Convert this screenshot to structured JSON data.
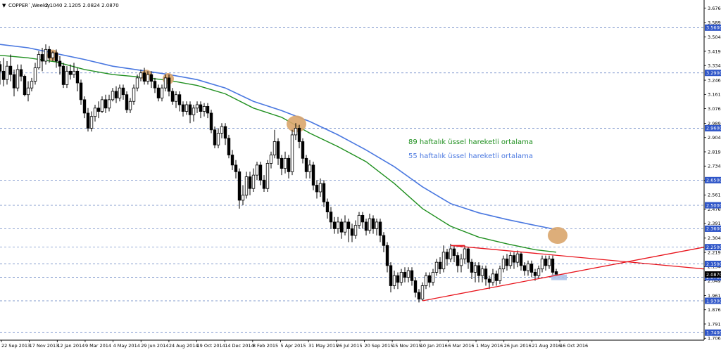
{
  "header": {
    "arrow": "▼",
    "symbol": "COPPER`,Weekly",
    "ohlc": "2.1040 2.1205 2.0824 2.0870"
  },
  "chart_data": {
    "type": "candlestick",
    "y_ticks": [
      "3.6765",
      "3.5890",
      "3.5040",
      "3.4190",
      "3.3340",
      "3.2465",
      "3.1615",
      "3.0765",
      "2.9890",
      "2.9040",
      "2.8190",
      "2.7340",
      "2.6490",
      "2.5615",
      "2.4765",
      "2.3915",
      "2.3040",
      "2.2190",
      "2.1340",
      "2.0490",
      "1.9615",
      "1.8765",
      "1.7915",
      "1.7065"
    ],
    "ylim": [
      1.695,
      3.725
    ],
    "x_ticks": [
      "22 Sep 2013",
      "17 Nov 2013",
      "12 Jan 2014",
      "9 Mar 2014",
      "4 May 2014",
      "29 Jun 2014",
      "24 Aug 2014",
      "19 Oct 2014",
      "14 Dec 2014",
      "8 Feb 2015",
      "5 Apr 2015",
      "31 May 2015",
      "26 Jul 2015",
      "20 Sep 2015",
      "15 Nov 2015",
      "10 Jan 2016",
      "6 Mar 2016",
      "1 May 2016",
      "26 Jun 2016",
      "21 Aug 2016",
      "16 Oct 2016"
    ],
    "levels": [
      {
        "value": 3.56,
        "label": "3.5600"
      },
      {
        "value": 3.29,
        "label": "3.2900"
      },
      {
        "value": 2.96,
        "label": "2.9600"
      },
      {
        "value": 2.65,
        "label": "2.6500"
      },
      {
        "value": 2.5,
        "label": "2.5000"
      },
      {
        "value": 2.36,
        "label": "2.3600"
      },
      {
        "value": 2.25,
        "label": "2.2500"
      },
      {
        "value": 2.15,
        "label": "2.1500"
      },
      {
        "value": 2.07,
        "label": "2.0700"
      },
      {
        "value": 1.93,
        "label": "1.9300"
      },
      {
        "value": 1.74,
        "label": "1.7400"
      }
    ],
    "current_price": {
      "value": 2.087,
      "label": "2.0870"
    },
    "series": [
      {
        "name": "89 haftalık üssel hareketli ortalama",
        "color": "#1f8f1f"
      },
      {
        "name": "55 haftalık üssel hareketli ortalama",
        "color": "#4a78e0"
      }
    ],
    "ma89": [
      [
        0,
        3.395
      ],
      [
        40,
        3.38
      ],
      [
        80,
        3.355
      ],
      [
        120,
        3.31
      ],
      [
        160,
        3.28
      ],
      [
        200,
        3.265
      ],
      [
        240,
        3.245
      ],
      [
        280,
        3.215
      ],
      [
        320,
        3.165
      ],
      [
        360,
        3.08
      ],
      [
        400,
        3.025
      ],
      [
        440,
        2.93
      ],
      [
        480,
        2.85
      ],
      [
        520,
        2.76
      ],
      [
        560,
        2.63
      ],
      [
        600,
        2.48
      ],
      [
        640,
        2.375
      ],
      [
        680,
        2.31
      ],
      [
        720,
        2.27
      ],
      [
        760,
        2.235
      ],
      [
        790,
        2.22
      ]
    ],
    "ma55": [
      [
        0,
        3.46
      ],
      [
        40,
        3.44
      ],
      [
        80,
        3.405
      ],
      [
        120,
        3.37
      ],
      [
        160,
        3.33
      ],
      [
        200,
        3.305
      ],
      [
        240,
        3.28
      ],
      [
        280,
        3.25
      ],
      [
        320,
        3.2
      ],
      [
        360,
        3.12
      ],
      [
        400,
        3.065
      ],
      [
        440,
        3.0
      ],
      [
        480,
        2.92
      ],
      [
        520,
        2.83
      ],
      [
        560,
        2.73
      ],
      [
        600,
        2.61
      ],
      [
        640,
        2.51
      ],
      [
        680,
        2.455
      ],
      [
        720,
        2.415
      ],
      [
        760,
        2.38
      ],
      [
        790,
        2.355
      ]
    ],
    "candles": [
      [
        0,
        3.34,
        3.3,
        3.36,
        3.22
      ],
      [
        5,
        3.3,
        3.25,
        3.38,
        3.21
      ],
      [
        10,
        3.25,
        3.33,
        3.36,
        3.22
      ],
      [
        15,
        3.33,
        3.28,
        3.4,
        3.24
      ],
      [
        20,
        3.28,
        3.2,
        3.31,
        3.15
      ],
      [
        25,
        3.2,
        3.31,
        3.34,
        3.18
      ],
      [
        30,
        3.31,
        3.27,
        3.34,
        3.24
      ],
      [
        35,
        3.27,
        3.16,
        3.28,
        3.15
      ],
      [
        40,
        3.16,
        3.2,
        3.24,
        3.12
      ],
      [
        45,
        3.2,
        3.24,
        3.26,
        3.18
      ],
      [
        50,
        3.24,
        3.32,
        3.35,
        3.22
      ],
      [
        55,
        3.32,
        3.4,
        3.42,
        3.31
      ],
      [
        60,
        3.4,
        3.36,
        3.44,
        3.3
      ],
      [
        65,
        3.36,
        3.43,
        3.46,
        3.34
      ],
      [
        70,
        3.43,
        3.38,
        3.45,
        3.35
      ],
      [
        75,
        3.38,
        3.41,
        3.42,
        3.36
      ],
      [
        80,
        3.41,
        3.36,
        3.43,
        3.32
      ],
      [
        85,
        3.36,
        3.33,
        3.39,
        3.28
      ],
      [
        90,
        3.33,
        3.22,
        3.35,
        3.2
      ],
      [
        95,
        3.22,
        3.3,
        3.33,
        3.2
      ],
      [
        100,
        3.3,
        3.28,
        3.34,
        3.25
      ],
      [
        105,
        3.28,
        3.3,
        3.35,
        3.26
      ],
      [
        110,
        3.3,
        3.23,
        3.32,
        3.18
      ],
      [
        115,
        3.23,
        3.13,
        3.25,
        3.1
      ],
      [
        120,
        3.13,
        3.05,
        3.15,
        3.02
      ],
      [
        125,
        3.05,
        2.96,
        3.08,
        2.94
      ],
      [
        130,
        2.96,
        3.03,
        3.06,
        2.94
      ],
      [
        135,
        3.03,
        3.08,
        3.1,
        3.0
      ],
      [
        140,
        3.08,
        3.06,
        3.12,
        3.02
      ],
      [
        145,
        3.06,
        3.13,
        3.15,
        3.05
      ],
      [
        150,
        3.13,
        3.08,
        3.16,
        3.05
      ],
      [
        155,
        3.08,
        3.13,
        3.16,
        3.06
      ],
      [
        160,
        3.13,
        3.18,
        3.2,
        3.12
      ],
      [
        165,
        3.18,
        3.14,
        3.21,
        3.11
      ],
      [
        170,
        3.14,
        3.2,
        3.22,
        3.12
      ],
      [
        175,
        3.2,
        3.16,
        3.22,
        3.13
      ],
      [
        180,
        3.16,
        3.07,
        3.18,
        3.05
      ],
      [
        185,
        3.07,
        3.12,
        3.14,
        3.05
      ],
      [
        190,
        3.12,
        3.2,
        3.22,
        3.1
      ],
      [
        195,
        3.2,
        3.26,
        3.28,
        3.18
      ],
      [
        200,
        3.26,
        3.29,
        3.31,
        3.24
      ],
      [
        205,
        3.29,
        3.24,
        3.32,
        3.22
      ],
      [
        210,
        3.24,
        3.28,
        3.3,
        3.22
      ],
      [
        215,
        3.28,
        3.24,
        3.3,
        3.2
      ],
      [
        220,
        3.24,
        3.2,
        3.26,
        3.17
      ],
      [
        225,
        3.2,
        3.14,
        3.22,
        3.12
      ],
      [
        230,
        3.14,
        3.2,
        3.22,
        3.12
      ],
      [
        235,
        3.2,
        3.26,
        3.28,
        3.18
      ],
      [
        240,
        3.26,
        3.18,
        3.28,
        3.15
      ],
      [
        245,
        3.18,
        3.12,
        3.2,
        3.1
      ],
      [
        250,
        3.12,
        3.16,
        3.18,
        3.08
      ],
      [
        255,
        3.16,
        3.1,
        3.18,
        3.06
      ],
      [
        260,
        3.1,
        3.06,
        3.12,
        3.03
      ],
      [
        265,
        3.06,
        3.1,
        3.12,
        3.04
      ],
      [
        270,
        3.1,
        3.04,
        3.12,
        2.99
      ],
      [
        275,
        3.04,
        3.08,
        3.1,
        3.0
      ],
      [
        280,
        3.08,
        3.1,
        3.12,
        3.05
      ],
      [
        285,
        3.1,
        3.06,
        3.12,
        3.02
      ],
      [
        290,
        3.06,
        3.09,
        3.11,
        3.03
      ],
      [
        295,
        3.09,
        3.05,
        3.11,
        3.02
      ],
      [
        300,
        3.05,
        2.95,
        3.07,
        2.93
      ],
      [
        305,
        2.95,
        2.86,
        2.97,
        2.84
      ],
      [
        310,
        2.86,
        2.93,
        2.96,
        2.84
      ],
      [
        315,
        2.93,
        2.97,
        2.99,
        2.9
      ],
      [
        320,
        2.97,
        2.9,
        2.99,
        2.86
      ],
      [
        325,
        2.9,
        2.8,
        2.92,
        2.78
      ],
      [
        330,
        2.8,
        2.74,
        2.83,
        2.71
      ],
      [
        335,
        2.74,
        2.7,
        2.77,
        2.66
      ],
      [
        340,
        2.7,
        2.53,
        2.72,
        2.48
      ],
      [
        345,
        2.53,
        2.56,
        2.62,
        2.5
      ],
      [
        350,
        2.56,
        2.67,
        2.7,
        2.54
      ],
      [
        355,
        2.67,
        2.6,
        2.7,
        2.56
      ],
      [
        360,
        2.6,
        2.68,
        2.72,
        2.58
      ],
      [
        365,
        2.68,
        2.74,
        2.76,
        2.65
      ],
      [
        370,
        2.74,
        2.65,
        2.76,
        2.62
      ],
      [
        375,
        2.65,
        2.6,
        2.68,
        2.58
      ],
      [
        380,
        2.6,
        2.75,
        2.77,
        2.58
      ],
      [
        385,
        2.75,
        2.8,
        2.82,
        2.72
      ],
      [
        390,
        2.8,
        2.88,
        2.95,
        2.78
      ],
      [
        395,
        2.88,
        2.78,
        2.9,
        2.74
      ],
      [
        400,
        2.78,
        2.72,
        2.8,
        2.68
      ],
      [
        405,
        2.72,
        2.78,
        2.82,
        2.69
      ],
      [
        410,
        2.78,
        2.7,
        2.8,
        2.66
      ],
      [
        415,
        2.7,
        2.92,
        2.95,
        2.68
      ],
      [
        420,
        2.92,
        2.96,
        2.99,
        2.89
      ],
      [
        425,
        2.96,
        2.88,
        2.98,
        2.84
      ],
      [
        430,
        2.88,
        2.78,
        2.9,
        2.75
      ],
      [
        435,
        2.78,
        2.7,
        2.8,
        2.66
      ],
      [
        440,
        2.7,
        2.74,
        2.77,
        2.66
      ],
      [
        445,
        2.74,
        2.62,
        2.76,
        2.59
      ],
      [
        450,
        2.62,
        2.58,
        2.65,
        2.54
      ],
      [
        455,
        2.58,
        2.63,
        2.66,
        2.55
      ],
      [
        460,
        2.63,
        2.52,
        2.65,
        2.49
      ],
      [
        465,
        2.52,
        2.46,
        2.54,
        2.42
      ],
      [
        470,
        2.46,
        2.4,
        2.49,
        2.36
      ],
      [
        475,
        2.4,
        2.36,
        2.43,
        2.33
      ],
      [
        480,
        2.36,
        2.4,
        2.43,
        2.33
      ],
      [
        485,
        2.4,
        2.34,
        2.42,
        2.3
      ],
      [
        490,
        2.34,
        2.4,
        2.44,
        2.32
      ],
      [
        495,
        2.4,
        2.36,
        2.42,
        2.28
      ],
      [
        500,
        2.36,
        2.32,
        2.39,
        2.28
      ],
      [
        505,
        2.32,
        2.38,
        2.41,
        2.3
      ],
      [
        510,
        2.38,
        2.44,
        2.46,
        2.36
      ],
      [
        515,
        2.44,
        2.4,
        2.46,
        2.36
      ],
      [
        520,
        2.4,
        2.35,
        2.42,
        2.32
      ],
      [
        525,
        2.35,
        2.42,
        2.45,
        2.33
      ],
      [
        530,
        2.42,
        2.36,
        2.44,
        2.33
      ],
      [
        535,
        2.36,
        2.4,
        2.42,
        2.32
      ],
      [
        540,
        2.4,
        2.32,
        2.42,
        2.28
      ],
      [
        545,
        2.32,
        2.26,
        2.34,
        2.22
      ],
      [
        550,
        2.26,
        2.14,
        2.28,
        2.1
      ],
      [
        555,
        2.14,
        2.02,
        2.16,
        1.98
      ],
      [
        560,
        2.02,
        2.08,
        2.11,
        2.0
      ],
      [
        565,
        2.08,
        2.04,
        2.1,
        2.0
      ],
      [
        570,
        2.04,
        2.1,
        2.12,
        2.02
      ],
      [
        575,
        2.1,
        2.07,
        2.13,
        2.04
      ],
      [
        580,
        2.07,
        2.11,
        2.13,
        2.04
      ],
      [
        585,
        2.11,
        2.05,
        2.13,
        2.02
      ],
      [
        590,
        2.05,
        1.98,
        2.07,
        1.95
      ],
      [
        595,
        1.98,
        1.94,
        2.0,
        1.92
      ],
      [
        600,
        1.94,
        2.02,
        2.04,
        1.93
      ],
      [
        605,
        2.02,
        2.08,
        2.1,
        2.0
      ],
      [
        610,
        2.08,
        2.04,
        2.1,
        2.01
      ],
      [
        615,
        2.04,
        2.1,
        2.12,
        2.02
      ],
      [
        620,
        2.1,
        2.16,
        2.18,
        2.08
      ],
      [
        625,
        2.16,
        2.12,
        2.19,
        2.09
      ],
      [
        630,
        2.12,
        2.22,
        2.26,
        2.1
      ],
      [
        635,
        2.22,
        2.18,
        2.24,
        2.14
      ],
      [
        640,
        2.18,
        2.24,
        2.27,
        2.16
      ],
      [
        645,
        2.24,
        2.2,
        2.26,
        2.16
      ],
      [
        650,
        2.2,
        2.14,
        2.22,
        2.1
      ],
      [
        655,
        2.14,
        2.18,
        2.21,
        2.1
      ],
      [
        660,
        2.18,
        2.24,
        2.26,
        2.15
      ],
      [
        665,
        2.24,
        2.16,
        2.25,
        2.12
      ],
      [
        670,
        2.16,
        2.1,
        2.18,
        2.06
      ],
      [
        675,
        2.1,
        2.14,
        2.16,
        2.04
      ],
      [
        680,
        2.14,
        2.08,
        2.16,
        2.04
      ],
      [
        685,
        2.08,
        2.12,
        2.14,
        2.04
      ],
      [
        690,
        2.12,
        2.06,
        2.14,
        2.02
      ],
      [
        695,
        2.06,
        2.04,
        2.08,
        2.0
      ],
      [
        700,
        2.04,
        2.09,
        2.12,
        2.02
      ],
      [
        705,
        2.09,
        2.05,
        2.11,
        2.02
      ],
      [
        710,
        2.05,
        2.12,
        2.14,
        2.03
      ],
      [
        715,
        2.12,
        2.18,
        2.2,
        2.1
      ],
      [
        720,
        2.18,
        2.14,
        2.21,
        2.11
      ],
      [
        725,
        2.14,
        2.2,
        2.22,
        2.12
      ],
      [
        730,
        2.2,
        2.16,
        2.22,
        2.12
      ],
      [
        735,
        2.16,
        2.21,
        2.23,
        2.13
      ],
      [
        740,
        2.21,
        2.14,
        2.22,
        2.11
      ],
      [
        745,
        2.14,
        2.11,
        2.16,
        2.08
      ],
      [
        750,
        2.11,
        2.15,
        2.17,
        2.08
      ],
      [
        755,
        2.15,
        2.1,
        2.17,
        2.07
      ],
      [
        760,
        2.1,
        2.08,
        2.12,
        2.05
      ],
      [
        765,
        2.08,
        2.12,
        2.14,
        2.06
      ],
      [
        770,
        2.12,
        2.18,
        2.2,
        2.1
      ],
      [
        775,
        2.18,
        2.14,
        2.2,
        2.11
      ],
      [
        780,
        2.14,
        2.18,
        2.2,
        2.12
      ],
      [
        785,
        2.18,
        2.1,
        2.2,
        2.08
      ],
      [
        790,
        2.104,
        2.087,
        2.1205,
        2.0824
      ]
    ],
    "trendlines": [
      {
        "color": "#e8141c",
        "from": [
          600,
          1.93
        ],
        "to": [
          1000,
          2.25
        ]
      },
      {
        "color": "#e8141c",
        "from": [
          640,
          2.26
        ],
        "to": [
          1000,
          2.12
        ]
      },
      {
        "color": "#e8141c",
        "from": [
          640,
          2.26
        ],
        "to": [
          660,
          2.26
        ]
      }
    ],
    "highlights": [
      {
        "x": 75,
        "y": 3.395
      },
      {
        "x": 208,
        "y": 3.275
      },
      {
        "x": 239,
        "y": 3.255
      },
      {
        "x": 421,
        "y": 2.985
      },
      {
        "x": 792,
        "y": 2.32
      }
    ],
    "marker_box": {
      "x": 793,
      "y": 2.07
    },
    "colors": {
      "background": "#ffffff",
      "grid": "#5b7bbf",
      "candle": "#000000",
      "level_label": "#2e55c8",
      "current_label": "#000000",
      "highlight": "#d9a56b",
      "marker_box": "#a9c0e8"
    }
  }
}
